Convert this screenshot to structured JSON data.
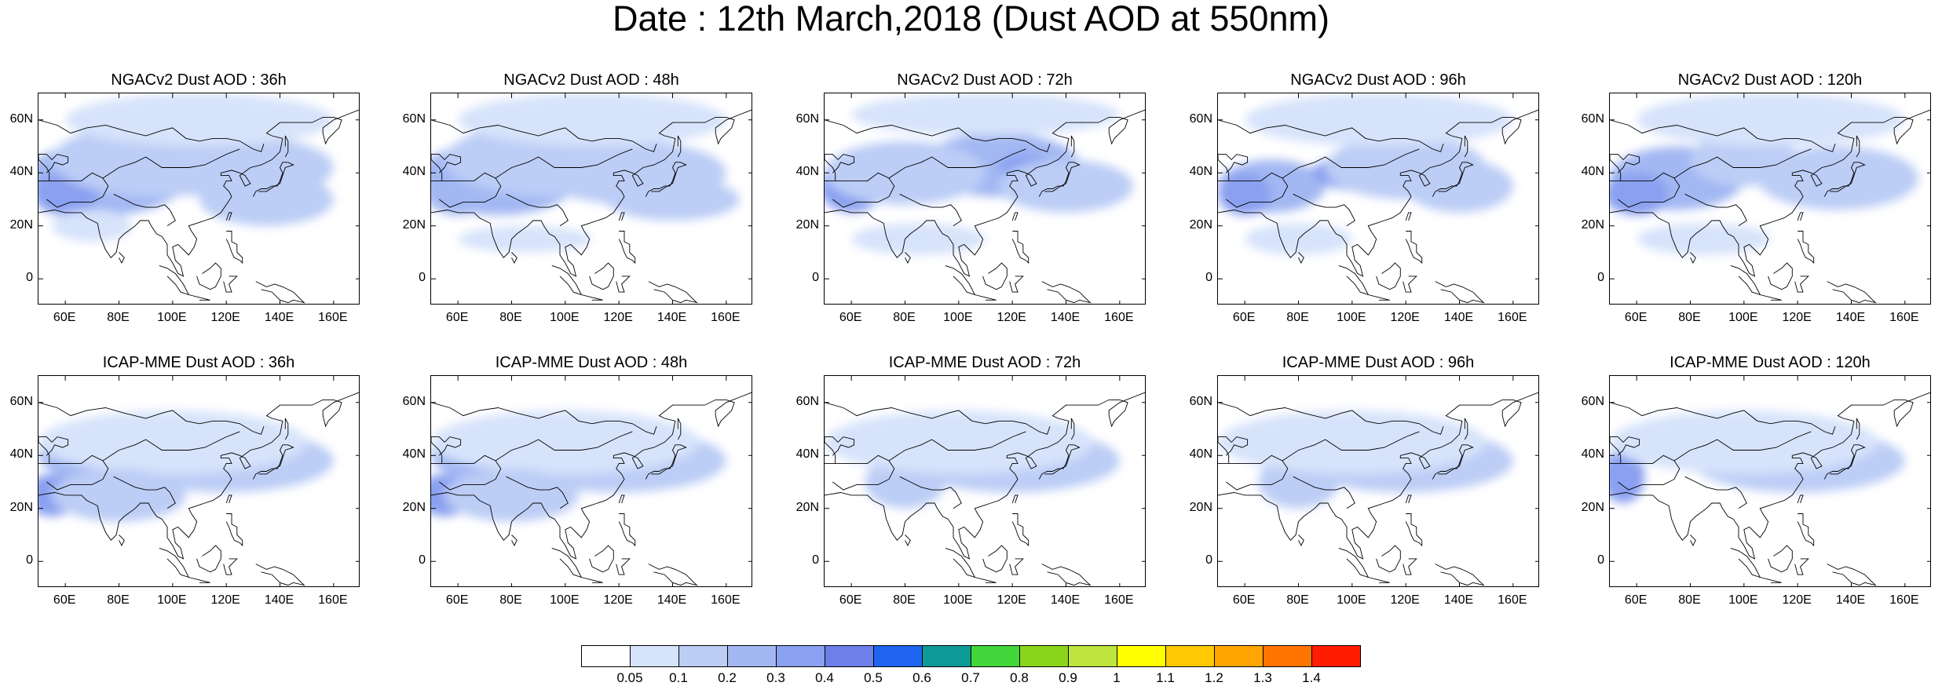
{
  "title": "Date : 12th March,2018 (Dust AOD at 550nm)",
  "lat_ticks": [
    "0",
    "20N",
    "40N",
    "60N"
  ],
  "lon_ticks": [
    "60E",
    "80E",
    "100E",
    "120E",
    "140E",
    "160E"
  ],
  "panels": [
    {
      "title": "NGACv2 Dust AOD : 36h",
      "model": "NGACv2",
      "lead": "36h"
    },
    {
      "title": "NGACv2 Dust AOD : 48h",
      "model": "NGACv2",
      "lead": "48h"
    },
    {
      "title": "NGACv2 Dust AOD : 72h",
      "model": "NGACv2",
      "lead": "72h"
    },
    {
      "title": "NGACv2 Dust AOD : 96h",
      "model": "NGACv2",
      "lead": "96h"
    },
    {
      "title": "NGACv2 Dust AOD : 120h",
      "model": "NGACv2",
      "lead": "120h"
    },
    {
      "title": "ICAP-MME Dust AOD : 36h",
      "model": "ICAP-MME",
      "lead": "36h"
    },
    {
      "title": "ICAP-MME Dust AOD : 48h",
      "model": "ICAP-MME",
      "lead": "48h"
    },
    {
      "title": "ICAP-MME Dust AOD : 72h",
      "model": "ICAP-MME",
      "lead": "72h"
    },
    {
      "title": "ICAP-MME Dust AOD : 96h",
      "model": "ICAP-MME",
      "lead": "96h"
    },
    {
      "title": "ICAP-MME Dust AOD : 120h",
      "model": "ICAP-MME",
      "lead": "120h"
    }
  ],
  "colorbar": {
    "labels": [
      "0.05",
      "0.1",
      "0.2",
      "0.3",
      "0.4",
      "0.5",
      "0.6",
      "0.7",
      "0.8",
      "0.9",
      "1",
      "1.1",
      "1.2",
      "1.3",
      "1.4"
    ],
    "colors": [
      "#ffffff",
      "#d7e3fb",
      "#bccdf6",
      "#a3b8f3",
      "#8aa0f0",
      "#6f7fea",
      "#1f64f0",
      "#0e9a96",
      "#43d63a",
      "#8ad41c",
      "#bde53d",
      "#ffff00",
      "#ffc800",
      "#ffa400",
      "#ff7500",
      "#ff1c00"
    ]
  }
}
